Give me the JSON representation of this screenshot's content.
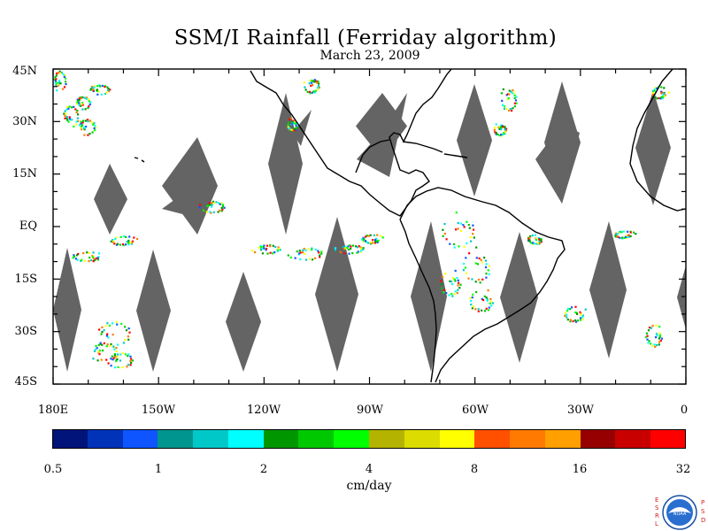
{
  "title": "SSM/I Rainfall (Ferriday algorithm)",
  "date": "March 23, 2009",
  "lat_labels": [
    "45N",
    "30N",
    "15N",
    "EQ",
    "15S",
    "30S",
    "45S"
  ],
  "lon_labels": [
    "180E",
    "150W",
    "120W",
    "90W",
    "60W",
    "30W",
    "0"
  ],
  "colorbar": {
    "colors": [
      "#00147a",
      "#0033b8",
      "#0f55ff",
      "#00968f",
      "#00c8c8",
      "#00ffff",
      "#009600",
      "#00c800",
      "#00ff00",
      "#b4b400",
      "#dcdc00",
      "#ffff00",
      "#ff5000",
      "#ff7a00",
      "#ffa000",
      "#960000",
      "#c80000",
      "#ff0000"
    ],
    "ticks": [
      "0.5",
      "1",
      "2",
      "4",
      "8",
      "16",
      "32"
    ],
    "units": "cm/day"
  },
  "logo": {
    "left_letters": "ESRL",
    "right_letters": "PSD",
    "badge": "NOAA"
  },
  "colors": {
    "swath_gap": "#646464",
    "coast": "#000000"
  }
}
